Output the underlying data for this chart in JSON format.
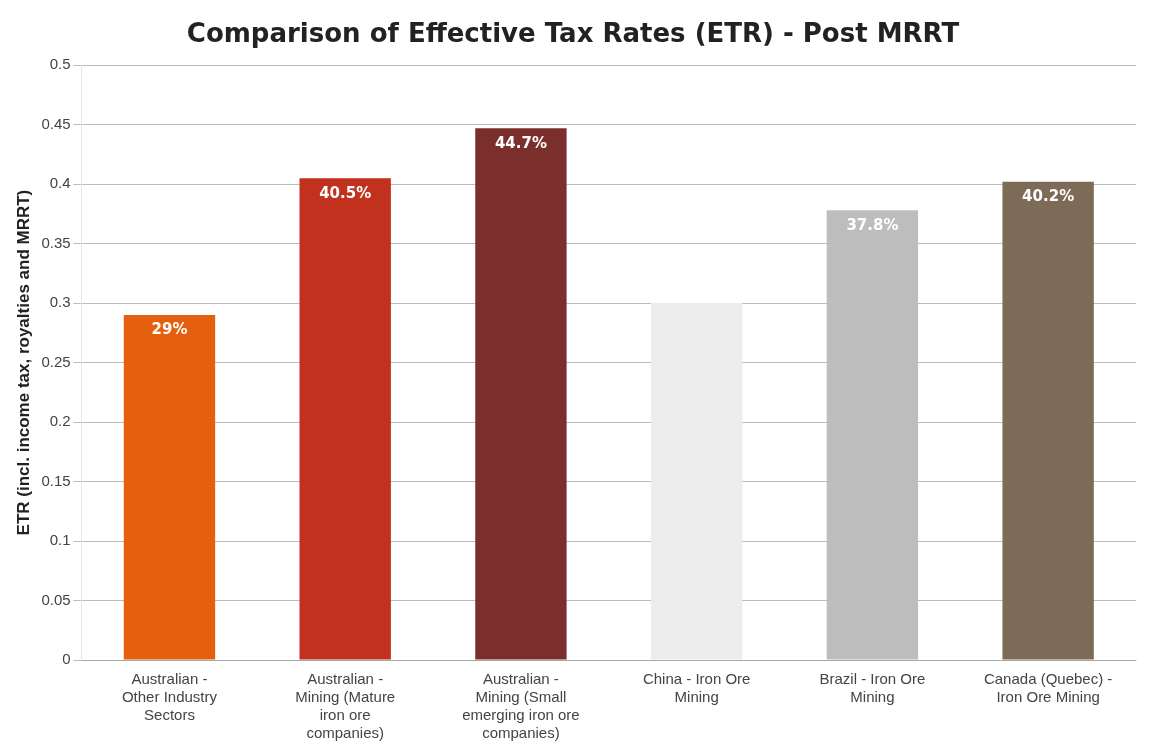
{
  "chart_data": {
    "type": "bar",
    "title": "Comparison of Effective Tax Rates (ETR) - Post MRRT",
    "ylabel": "ETR (incl. income tax, royalties and MRRT)",
    "categories": [
      "Australian - Other Industry Sectors",
      "Australian - Mining (Mature iron ore companies)",
      "Australian - Mining (Small emerging iron ore companies)",
      "China - Iron Ore Mining",
      "Brazil - Iron Ore Mining",
      "Canada (Quebec) - Iron Ore Mining"
    ],
    "values": [
      0.29,
      0.405,
      0.447,
      0.3,
      0.378,
      0.402
    ],
    "colors": [
      "#e4600e",
      "#c1311d",
      "#7b2f2c",
      "#ededed",
      "#bdbdbd",
      "#7e6b57"
    ],
    "value_labels": [
      "29%",
      "40.5%",
      "44.7%",
      null,
      "37.8%",
      "40.2%"
    ],
    "ylim": [
      0,
      0.5
    ],
    "yticks": [
      0,
      0.05,
      0.1,
      0.15,
      0.2,
      0.25,
      0.3,
      0.35,
      0.4,
      0.45,
      0.5
    ],
    "grid": "y",
    "legend": false
  }
}
